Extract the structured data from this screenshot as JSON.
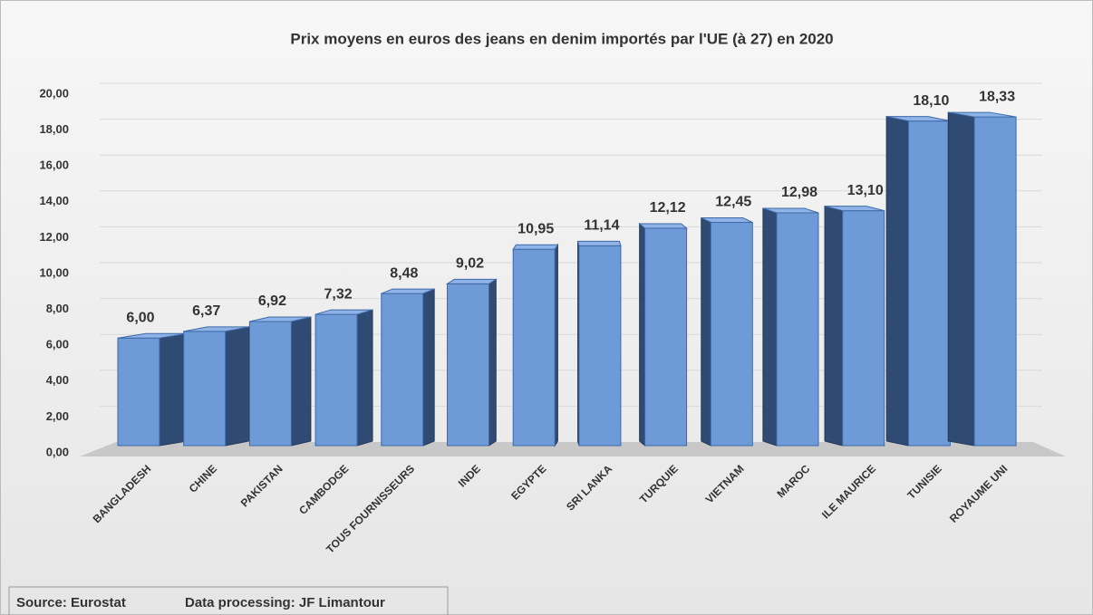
{
  "chart_data": {
    "type": "bar3d",
    "title": "Prix moyens en euros des jeans en denim importés par l'UE (à 27) en 2020",
    "categories": [
      "BANGLADESH",
      "CHINE",
      "PAKISTAN",
      "CAMBODGE",
      "TOUS FOURNISSEURS",
      "INDE",
      "EGYPTE",
      "SRI LANKA",
      "TURQUIE",
      "VIETNAM",
      "MAROC",
      "ILE MAURICE",
      "TUNISIE",
      "ROYAUME UNI"
    ],
    "values": [
      6.0,
      6.37,
      6.92,
      7.32,
      8.48,
      9.02,
      10.95,
      11.14,
      12.12,
      12.45,
      12.98,
      13.1,
      18.1,
      18.33
    ],
    "value_labels": [
      "6,00",
      "6,37",
      "6,92",
      "7,32",
      "8,48",
      "9,02",
      "10,95",
      "11,14",
      "12,12",
      "12,45",
      "12,98",
      "13,10",
      "18,10",
      "18,33"
    ],
    "color": "#6f9ad8",
    "ylim": [
      0,
      20
    ],
    "yticks": [
      {
        "value": 0,
        "label": "0,00"
      },
      {
        "value": 2,
        "label": "2,00"
      },
      {
        "value": 4,
        "label": "4,00"
      },
      {
        "value": 6,
        "label": "6,00"
      },
      {
        "value": 8,
        "label": "8,00"
      },
      {
        "value": 10,
        "label": "10,00"
      },
      {
        "value": 12,
        "label": "12,00"
      },
      {
        "value": 14,
        "label": "14,00"
      },
      {
        "value": 16,
        "label": "16,00"
      },
      {
        "value": 18,
        "label": "18,00"
      },
      {
        "value": 20,
        "label": "20,00"
      }
    ],
    "grid": true,
    "source": "Source: Eurostat",
    "credit": "Data processing: JF Limantour"
  }
}
